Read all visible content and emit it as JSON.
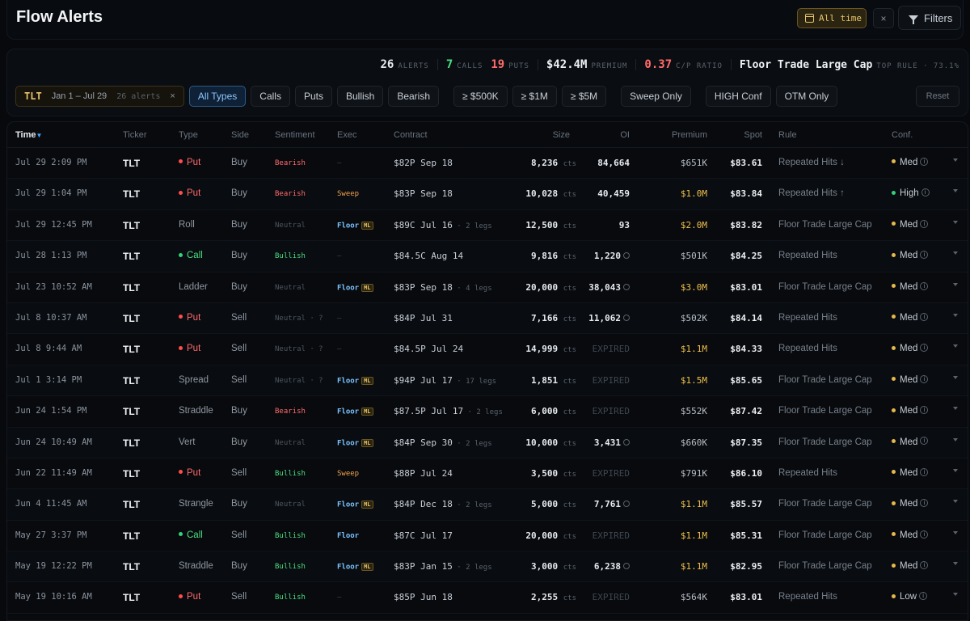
{
  "header": {
    "title": "Flow Alerts",
    "all_time_label": "All time",
    "clear_label": "×",
    "filters_label": "Filters"
  },
  "stats": {
    "alerts_count": "26",
    "alerts_label": "ALERTS",
    "calls_count": "7",
    "calls_label": "CALLS",
    "puts_count": "19",
    "puts_label": "PUTS",
    "premium_value": "$42.4M",
    "premium_label": "PREMIUM",
    "cp_ratio_value": "0.37",
    "cp_ratio_label": "C/P RATIO",
    "top_rule_name": "Floor Trade Large Cap",
    "top_rule_label": "TOP RULE · 73.1%"
  },
  "ticker_filter": {
    "ticker": "TLT",
    "range": "Jan 1 – Jul 29",
    "count": "26 alerts",
    "remove": "×"
  },
  "filters": {
    "all_types": "All Types",
    "calls": "Calls",
    "puts": "Puts",
    "bullish": "Bullish",
    "bearish": "Bearish",
    "p500k": "≥ $500K",
    "p1m": "≥ $1M",
    "p5m": "≥ $5M",
    "sweep_only": "Sweep Only",
    "high_conf": "HIGH Conf",
    "otm_only": "OTM Only",
    "reset": "Reset"
  },
  "columns": {
    "time": "Time",
    "ticker": "Ticker",
    "type": "Type",
    "side": "Side",
    "sentiment": "Sentiment",
    "exec": "Exec",
    "contract": "Contract",
    "size": "Size",
    "oi": "OI",
    "premium": "Premium",
    "spot": "Spot",
    "rule": "Rule",
    "conf": "Conf."
  },
  "colors": {
    "accent_gold": "#e7c46a",
    "bearish_red": "#ff6b6b",
    "bullish_green": "#4ade80",
    "floor_blue": "#7cc4ff",
    "sweep_orange": "#f0a04b",
    "active_blue": "#8cc6ff"
  },
  "rows": [
    {
      "time": "Jul 29 2:09 PM",
      "ticker": "TLT",
      "type": "Put",
      "type_kind": "put",
      "side": "Buy",
      "sentiment": "Bearish",
      "sent_kind": "bear",
      "exec": "—",
      "exec_kind": "none",
      "ml": false,
      "contract": "$82P Sep 18",
      "legs": "",
      "size": "8,236",
      "size_unit": "cts",
      "oi": "84,664",
      "oi_kind": "normal",
      "oi_clock": false,
      "premium": "$651K",
      "prem_big": false,
      "spot": "$83.61",
      "rule": "Repeated Hits ↓",
      "conf": "Med",
      "conf_kind": "med"
    },
    {
      "time": "Jul 29 1:04 PM",
      "ticker": "TLT",
      "type": "Put",
      "type_kind": "put",
      "side": "Buy",
      "sentiment": "Bearish",
      "sent_kind": "bear",
      "exec": "Sweep",
      "exec_kind": "sweep",
      "ml": false,
      "contract": "$83P Sep 18",
      "legs": "",
      "size": "10,028",
      "size_unit": "cts",
      "oi": "40,459",
      "oi_kind": "normal",
      "oi_clock": false,
      "premium": "$1.0M",
      "prem_big": true,
      "spot": "$83.84",
      "rule": "Repeated Hits ↑",
      "conf": "High",
      "conf_kind": "high"
    },
    {
      "time": "Jul 29 12:45 PM",
      "ticker": "TLT",
      "type": "Roll",
      "type_kind": "other",
      "side": "Buy",
      "sentiment": "Neutral",
      "sent_kind": "neut",
      "exec": "Floor",
      "exec_kind": "floor",
      "ml": true,
      "contract": "$89C Jul 16",
      "legs": " · 2 legs",
      "size": "12,500",
      "size_unit": "cts",
      "oi": "93",
      "oi_kind": "normal",
      "oi_clock": false,
      "premium": "$2.0M",
      "prem_big": true,
      "spot": "$83.82",
      "rule": "Floor Trade Large Cap",
      "conf": "Med",
      "conf_kind": "med"
    },
    {
      "time": "Jul 28 1:13 PM",
      "ticker": "TLT",
      "type": "Call",
      "type_kind": "call",
      "side": "Buy",
      "sentiment": "Bullish",
      "sent_kind": "bull",
      "exec": "—",
      "exec_kind": "none",
      "ml": false,
      "contract": "$84.5C Aug 14",
      "legs": "",
      "size": "9,816",
      "size_unit": "cts",
      "oi": "1,220",
      "oi_kind": "normal",
      "oi_clock": true,
      "premium": "$501K",
      "prem_big": false,
      "spot": "$84.25",
      "rule": "Repeated Hits",
      "conf": "Med",
      "conf_kind": "med"
    },
    {
      "time": "Jul 23 10:52 AM",
      "ticker": "TLT",
      "type": "Ladder",
      "type_kind": "other",
      "side": "Buy",
      "sentiment": "Neutral",
      "sent_kind": "neut",
      "exec": "Floor",
      "exec_kind": "floor",
      "ml": true,
      "contract": "$83P Sep 18",
      "legs": " · 4 legs",
      "size": "20,000",
      "size_unit": "cts",
      "oi": "38,043",
      "oi_kind": "normal",
      "oi_clock": true,
      "premium": "$3.0M",
      "prem_big": true,
      "spot": "$83.01",
      "rule": "Floor Trade Large Cap",
      "conf": "Med",
      "conf_kind": "med"
    },
    {
      "time": "Jul 8 10:37 AM",
      "ticker": "TLT",
      "type": "Put",
      "type_kind": "put",
      "side": "Sell",
      "sentiment": "Neutral · ?",
      "sent_kind": "neut",
      "exec": "—",
      "exec_kind": "none",
      "ml": false,
      "contract": "$84P Jul 31",
      "legs": "",
      "size": "7,166",
      "size_unit": "cts",
      "oi": "11,062",
      "oi_kind": "normal",
      "oi_clock": true,
      "premium": "$502K",
      "prem_big": false,
      "spot": "$84.14",
      "rule": "Repeated Hits",
      "conf": "Med",
      "conf_kind": "med"
    },
    {
      "time": "Jul 8 9:44 AM",
      "ticker": "TLT",
      "type": "Put",
      "type_kind": "put",
      "side": "Sell",
      "sentiment": "Neutral · ?",
      "sent_kind": "neut",
      "exec": "—",
      "exec_kind": "none",
      "ml": false,
      "contract": "$84.5P Jul 24",
      "legs": "",
      "size": "14,999",
      "size_unit": "cts",
      "oi": "EXPIRED",
      "oi_kind": "expired",
      "oi_clock": false,
      "premium": "$1.1M",
      "prem_big": true,
      "spot": "$84.33",
      "rule": "Repeated Hits",
      "conf": "Med",
      "conf_kind": "med"
    },
    {
      "time": "Jul 1 3:14 PM",
      "ticker": "TLT",
      "type": "Spread",
      "type_kind": "other",
      "side": "Sell",
      "sentiment": "Neutral · ?",
      "sent_kind": "neut",
      "exec": "Floor",
      "exec_kind": "floor",
      "ml": true,
      "contract": "$94P Jul 17",
      "legs": " · 17 legs",
      "size": "1,851",
      "size_unit": "cts",
      "oi": "EXPIRED",
      "oi_kind": "expired",
      "oi_clock": false,
      "premium": "$1.5M",
      "prem_big": true,
      "spot": "$85.65",
      "rule": "Floor Trade Large Cap",
      "conf": "Med",
      "conf_kind": "med"
    },
    {
      "time": "Jun 24 1:54 PM",
      "ticker": "TLT",
      "type": "Straddle",
      "type_kind": "other",
      "side": "Buy",
      "sentiment": "Bearish",
      "sent_kind": "bear",
      "exec": "Floor",
      "exec_kind": "floor",
      "ml": true,
      "contract": "$87.5P Jul 17",
      "legs": " · 2 legs",
      "size": "6,000",
      "size_unit": "cts",
      "oi": "EXPIRED",
      "oi_kind": "expired",
      "oi_clock": false,
      "premium": "$552K",
      "prem_big": false,
      "spot": "$87.42",
      "rule": "Floor Trade Large Cap",
      "conf": "Med",
      "conf_kind": "med"
    },
    {
      "time": "Jun 24 10:49 AM",
      "ticker": "TLT",
      "type": "Vert",
      "type_kind": "other",
      "side": "Buy",
      "sentiment": "Neutral",
      "sent_kind": "neut",
      "exec": "Floor",
      "exec_kind": "floor",
      "ml": true,
      "contract": "$84P Sep 30",
      "legs": " · 2 legs",
      "size": "10,000",
      "size_unit": "cts",
      "oi": "3,431",
      "oi_kind": "normal",
      "oi_clock": true,
      "premium": "$660K",
      "prem_big": false,
      "spot": "$87.35",
      "rule": "Floor Trade Large Cap",
      "conf": "Med",
      "conf_kind": "med"
    },
    {
      "time": "Jun 22 11:49 AM",
      "ticker": "TLT",
      "type": "Put",
      "type_kind": "put",
      "side": "Sell",
      "sentiment": "Bullish",
      "sent_kind": "bull",
      "exec": "Sweep",
      "exec_kind": "sweep",
      "ml": false,
      "contract": "$88P Jul 24",
      "legs": "",
      "size": "3,500",
      "size_unit": "cts",
      "oi": "EXPIRED",
      "oi_kind": "expired",
      "oi_clock": false,
      "premium": "$791K",
      "prem_big": false,
      "spot": "$86.10",
      "rule": "Repeated Hits",
      "conf": "Med",
      "conf_kind": "med"
    },
    {
      "time": "Jun 4 11:45 AM",
      "ticker": "TLT",
      "type": "Strangle",
      "type_kind": "other",
      "side": "Buy",
      "sentiment": "Neutral",
      "sent_kind": "neut",
      "exec": "Floor",
      "exec_kind": "floor",
      "ml": true,
      "contract": "$84P Dec 18",
      "legs": " · 2 legs",
      "size": "5,000",
      "size_unit": "cts",
      "oi": "7,761",
      "oi_kind": "normal",
      "oi_clock": true,
      "premium": "$1.1M",
      "prem_big": true,
      "spot": "$85.57",
      "rule": "Floor Trade Large Cap",
      "conf": "Med",
      "conf_kind": "med"
    },
    {
      "time": "May 27 3:37 PM",
      "ticker": "TLT",
      "type": "Call",
      "type_kind": "call",
      "side": "Sell",
      "sentiment": "Bullish",
      "sent_kind": "bull",
      "exec": "Floor",
      "exec_kind": "floor",
      "ml": false,
      "contract": "$87C Jul 17",
      "legs": "",
      "size": "20,000",
      "size_unit": "cts",
      "oi": "EXPIRED",
      "oi_kind": "expired",
      "oi_clock": false,
      "premium": "$1.1M",
      "prem_big": true,
      "spot": "$85.31",
      "rule": "Floor Trade Large Cap",
      "conf": "Med",
      "conf_kind": "med"
    },
    {
      "time": "May 19 12:22 PM",
      "ticker": "TLT",
      "type": "Straddle",
      "type_kind": "other",
      "side": "Buy",
      "sentiment": "Bullish",
      "sent_kind": "bull",
      "exec": "Floor",
      "exec_kind": "floor",
      "ml": true,
      "contract": "$83P Jan 15",
      "legs": " · 2 legs",
      "size": "3,000",
      "size_unit": "cts",
      "oi": "6,238",
      "oi_kind": "normal",
      "oi_clock": true,
      "premium": "$1.1M",
      "prem_big": true,
      "spot": "$82.95",
      "rule": "Floor Trade Large Cap",
      "conf": "Med",
      "conf_kind": "med"
    },
    {
      "time": "May 19 10:16 AM",
      "ticker": "TLT",
      "type": "Put",
      "type_kind": "put",
      "side": "Sell",
      "sentiment": "Bullish",
      "sent_kind": "bull",
      "exec": "—",
      "exec_kind": "none",
      "ml": false,
      "contract": "$85P Jun 18",
      "legs": "",
      "size": "2,255",
      "size_unit": "cts",
      "oi": "EXPIRED",
      "oi_kind": "expired",
      "oi_clock": false,
      "premium": "$564K",
      "prem_big": false,
      "spot": "$83.01",
      "rule": "Repeated Hits",
      "conf": "Low",
      "conf_kind": "low"
    }
  ]
}
